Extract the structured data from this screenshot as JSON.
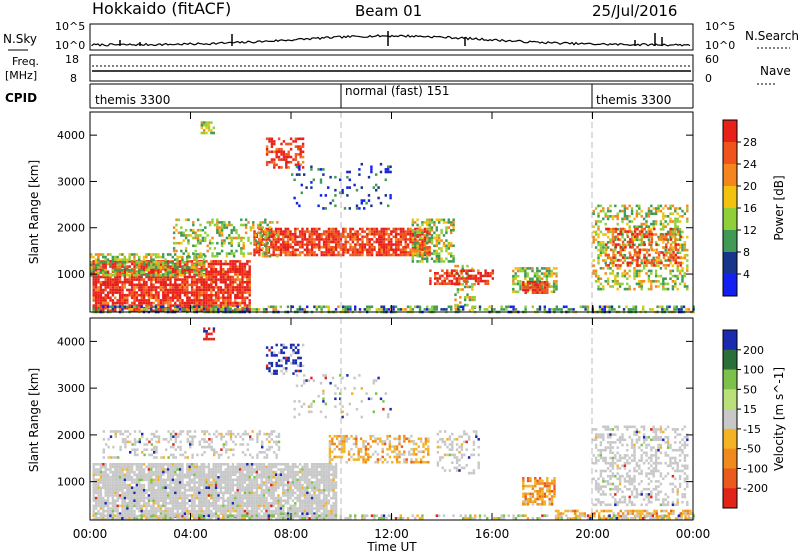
{
  "header": {
    "station": "Hokkaido (fitACF)",
    "beam": "Beam 01",
    "date": "25/Jul/2016"
  },
  "noise_panel": {
    "left_label": "N.Sky",
    "right_label": "N.Search",
    "left_ticks": [
      "10^5",
      "10^0"
    ],
    "right_ticks": [
      "10^5",
      "10^0"
    ]
  },
  "freq_panel": {
    "left_label_top": "Freq.",
    "left_label_unit": "[MHz]",
    "right_label": "Nave",
    "left_ticks": [
      "18",
      "8"
    ],
    "right_ticks": [
      "60",
      "0"
    ]
  },
  "cpid": {
    "label": "CPID",
    "segments": [
      {
        "label": "themis 3300",
        "start_hour": 0,
        "end_hour": 10
      },
      {
        "label": "normal (fast) 151",
        "start_hour": 10,
        "end_hour": 20
      },
      {
        "label": "themis 3300",
        "start_hour": 20,
        "end_hour": 24
      }
    ]
  },
  "chart_data": [
    {
      "type": "heatmap",
      "name": "power",
      "ylabel": "Slant Range [km]",
      "y_ticks": [
        "4000",
        "3000",
        "2000",
        "1000"
      ],
      "ylim": [
        180,
        4500
      ],
      "x_ticks": [
        "00:00",
        "04:00",
        "08:00",
        "12:00",
        "16:00",
        "20:00",
        "00:00"
      ],
      "colorbar": {
        "label": "Power [dB]",
        "ticks": [
          "28",
          "24",
          "20",
          "16",
          "12",
          "8",
          "4"
        ],
        "colors": [
          "#e8201a",
          "#f0541c",
          "#f5851e",
          "#f2c20e",
          "#8fcf3a",
          "#3e9a54",
          "#17358a",
          "#1320f0"
        ]
      }
    },
    {
      "type": "heatmap",
      "name": "velocity",
      "ylabel": "Slant Range [km]",
      "y_ticks": [
        "4000",
        "3000",
        "2000",
        "1000"
      ],
      "ylim": [
        180,
        4500
      ],
      "x_ticks": [
        "00:00",
        "04:00",
        "08:00",
        "12:00",
        "16:00",
        "20:00",
        "00:00"
      ],
      "xlabel": "Time UT",
      "colorbar": {
        "label": "Velocity [m s^-1]",
        "ticks": [
          "200",
          "100",
          "50",
          "15",
          "-15",
          "-50",
          "-100",
          "-200"
        ],
        "colors": [
          "#1b2bb0",
          "#2a6e3a",
          "#7cc24a",
          "#b9e07a",
          "#c8c8c8",
          "#f4b324",
          "#ef8a1c",
          "#e95a1c",
          "#e2231a"
        ]
      }
    }
  ]
}
